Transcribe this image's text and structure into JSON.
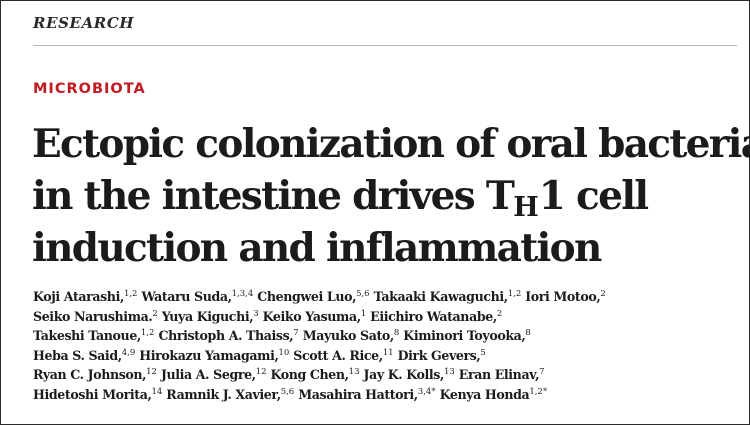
{
  "section_label": "RESEARCH",
  "category": "MICROBIOTA",
  "title": {
    "line1": "Ectopic colonization of oral bacteria",
    "line2_before": "in the intestine drives T",
    "line2_sub": "H",
    "line2_after": "1 cell",
    "line3": "induction and inflammation"
  },
  "authors": [
    [
      {
        "name": "Koji Atarashi,",
        "sup": "1,2"
      },
      {
        "name": "Wataru Suda,",
        "sup": "1,3,4"
      },
      {
        "name": "Chengwei Luo,",
        "sup": "5,6"
      },
      {
        "name": "Takaaki Kawaguchi,",
        "sup": "1,2"
      },
      {
        "name": "Iori Motoo,",
        "sup": "2"
      }
    ],
    [
      {
        "name": "Seiko Narushima.",
        "sup": "2"
      },
      {
        "name": "Yuya Kiguchi,",
        "sup": "3"
      },
      {
        "name": "Keiko Yasuma,",
        "sup": "1"
      },
      {
        "name": "Eiichiro Watanabe,",
        "sup": "2"
      }
    ],
    [
      {
        "name": "Takeshi Tanoue,",
        "sup": "1,2"
      },
      {
        "name": "Christoph A. Thaiss,",
        "sup": "7"
      },
      {
        "name": "Mayuko Sato,",
        "sup": "8"
      },
      {
        "name": "Kiminori Toyooka,",
        "sup": "8"
      }
    ],
    [
      {
        "name": "Heba S. Said,",
        "sup": "4,9"
      },
      {
        "name": "Hirokazu Yamagami,",
        "sup": "10"
      },
      {
        "name": "Scott A. Rice,",
        "sup": "11"
      },
      {
        "name": "Dirk Gevers,",
        "sup": "5"
      }
    ],
    [
      {
        "name": "Ryan C. Johnson,",
        "sup": "12"
      },
      {
        "name": "Julia A. Segre,",
        "sup": "12"
      },
      {
        "name": "Kong Chen,",
        "sup": "13"
      },
      {
        "name": "Jay K. Kolls,",
        "sup": "13"
      },
      {
        "name": "Eran Elinav,",
        "sup": "7"
      }
    ],
    [
      {
        "name": "Hidetoshi Morita,",
        "sup": "14"
      },
      {
        "name": "Ramnik J. Xavier,",
        "sup": "5,6"
      },
      {
        "name": "Masahira Hattori,",
        "sup": "3,4*"
      },
      {
        "name": "Kenya Honda",
        "sup": "1,2*"
      }
    ]
  ]
}
